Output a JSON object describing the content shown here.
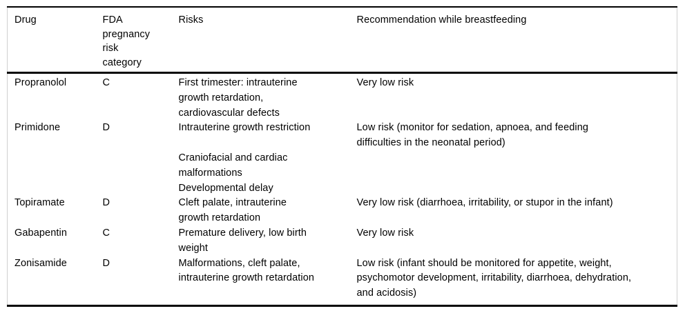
{
  "colors": {
    "text": "#000000",
    "rule": "#000000",
    "side_border": "#cfcfcf",
    "background": "#ffffff"
  },
  "table": {
    "columns": [
      {
        "label": "Drug"
      },
      {
        "label": "FDA\npregnancy\nrisk\ncategory"
      },
      {
        "label": "Risks"
      },
      {
        "label": "Recommendation while breastfeeding"
      }
    ],
    "rows": [
      {
        "drug": "Propranolol",
        "category": "C",
        "risks": "First trimester: intrauterine\ngrowth retardation,\ncardiovascular defects",
        "recommendation": "Very low risk"
      },
      {
        "drug": "Primidone",
        "category": "D",
        "risks": "Intrauterine growth restriction\n\nCraniofacial and cardiac\nmalformations\nDevelopmental delay",
        "recommendation": "Low risk (monitor for sedation, apnoea, and feeding\ndifficulties in the neonatal period)"
      },
      {
        "drug": "Topiramate",
        "category": "D",
        "risks": "Cleft palate, intrauterine\ngrowth retardation",
        "recommendation": "Very low risk (diarrhoea, irritability, or stupor in the infant)"
      },
      {
        "drug": "Gabapentin",
        "category": "C",
        "risks": "Premature delivery, low birth\nweight",
        "recommendation": "Very low risk"
      },
      {
        "drug": "Zonisamide",
        "category": "D",
        "risks": "Malformations, cleft palate,\nintrauterine growth retardation",
        "recommendation": "Low risk (infant should be monitored for appetite, weight,\npsychomotor development, irritability, diarrhoea, dehydration,\nand acidosis)"
      }
    ]
  }
}
